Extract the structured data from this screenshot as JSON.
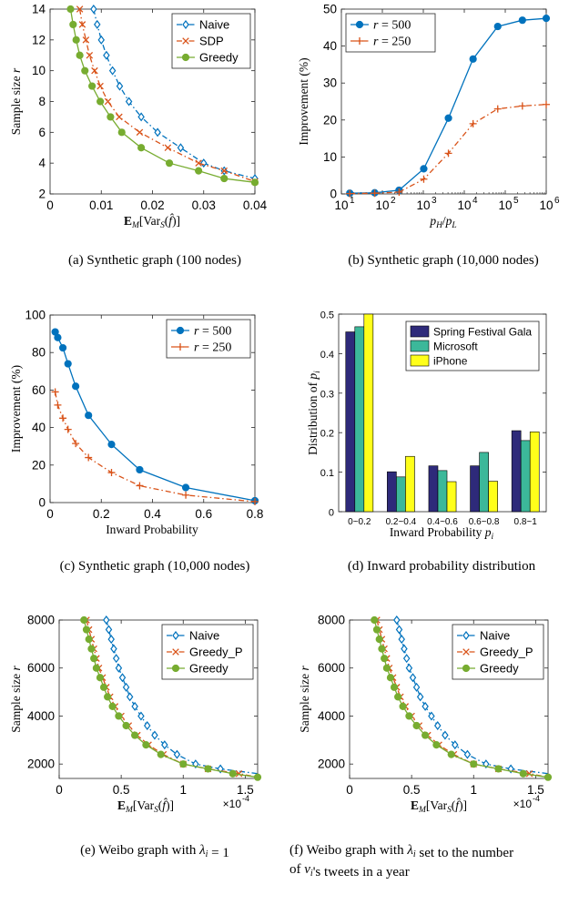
{
  "chart_data": [
    {
      "id": "a",
      "type": "line",
      "caption": "(a) Synthetic graph (100 nodes)",
      "xlabel": "E_M[Var_S(f̂)]",
      "ylabel": "Sample size r",
      "xlim": [
        0,
        0.04
      ],
      "ylim": [
        2,
        14
      ],
      "xticks": [
        0,
        0.01,
        0.02,
        0.03,
        0.04
      ],
      "xtick_labels": [
        "0",
        "0.01",
        "0.02",
        "0.03",
        "0.04"
      ],
      "yticks": [
        2,
        4,
        6,
        8,
        10,
        12,
        14
      ],
      "ytick_labels": [
        "2",
        "4",
        "6",
        "8",
        "10",
        "12",
        "14"
      ],
      "legend_position": "top-right",
      "series": [
        {
          "name": "Naive",
          "color": "#0072BD",
          "marker": "diamond",
          "dash": "dashdot",
          "x": [
            0.0085,
            0.0092,
            0.01,
            0.011,
            0.0122,
            0.0136,
            0.0154,
            0.0178,
            0.021,
            0.0255,
            0.03,
            0.034,
            0.04
          ],
          "y": [
            14,
            13,
            12,
            11,
            10,
            9,
            8,
            7,
            6,
            5,
            4,
            3.5,
            3
          ]
        },
        {
          "name": "SDP",
          "color": "#D95319",
          "marker": "x",
          "dash": "dashdot",
          "x": [
            0.0058,
            0.0063,
            0.007,
            0.0077,
            0.0087,
            0.0098,
            0.0113,
            0.0135,
            0.0175,
            0.023,
            0.029,
            0.034,
            0.04
          ],
          "y": [
            14,
            13,
            12,
            11,
            10,
            9,
            8,
            7,
            6,
            5,
            4,
            3.5,
            2.8
          ]
        },
        {
          "name": "Greedy",
          "color": "#77AC30",
          "marker": "circle",
          "dash": "solid",
          "x": [
            0.004,
            0.0045,
            0.0051,
            0.0058,
            0.0068,
            0.0082,
            0.0098,
            0.0118,
            0.014,
            0.0178,
            0.0233,
            0.029,
            0.034,
            0.04
          ],
          "y": [
            14,
            13,
            12,
            11,
            10,
            9,
            8,
            7,
            6,
            5,
            4,
            3.5,
            3,
            2.75
          ]
        }
      ]
    },
    {
      "id": "b",
      "type": "line",
      "caption": "(b) Synthetic graph (10,000 nodes)",
      "xlabel": "p_H/p_L",
      "ylabel": "Improvement (%)",
      "xscale": "log",
      "xlim": [
        10,
        1000000
      ],
      "ylim": [
        0,
        50
      ],
      "xticks": [
        10,
        100,
        1000,
        10000,
        100000,
        1000000
      ],
      "xtick_labels": [
        "10",
        "10",
        "10",
        "10",
        "10",
        "10"
      ],
      "xtick_exponents": [
        "1",
        "2",
        "3",
        "4",
        "5",
        "6"
      ],
      "yticks": [
        0,
        10,
        20,
        30,
        40,
        50
      ],
      "ytick_labels": [
        "0",
        "10",
        "20",
        "30",
        "40",
        "50"
      ],
      "legend_position": "top-left",
      "series": [
        {
          "name": "r = 500",
          "color": "#0072BD",
          "marker": "circle",
          "dash": "solid",
          "x": [
            16,
            65,
            256,
            1024,
            4096,
            16384,
            65536,
            262144,
            1000000
          ],
          "y": [
            0.2,
            0.3,
            1.0,
            6.8,
            20.5,
            36.5,
            45.3,
            47.0,
            47.5
          ]
        },
        {
          "name": "r = 250",
          "color": "#D95319",
          "marker": "plus",
          "dash": "dashdot",
          "x": [
            16,
            65,
            256,
            1024,
            4096,
            16384,
            65536,
            262144,
            1000000
          ],
          "y": [
            0.1,
            0.2,
            0.5,
            4.0,
            11.0,
            19.0,
            23.0,
            23.8,
            24.2
          ]
        }
      ]
    },
    {
      "id": "c",
      "type": "line",
      "caption": "(c) Synthetic graph (10,000 nodes)",
      "xlabel": "Inward Probability",
      "ylabel": "Improvement (%)",
      "xlim": [
        0,
        0.8
      ],
      "ylim": [
        0,
        100
      ],
      "xticks": [
        0,
        0.2,
        0.4,
        0.6,
        0.8
      ],
      "xtick_labels": [
        "0",
        "0.2",
        "0.4",
        "0.6",
        "0.8"
      ],
      "yticks": [
        0,
        20,
        40,
        60,
        80,
        100
      ],
      "ytick_labels": [
        "0",
        "20",
        "40",
        "60",
        "80",
        "100"
      ],
      "legend_position": "top-right",
      "series": [
        {
          "name": "r = 500",
          "color": "#0072BD",
          "marker": "circle",
          "dash": "solid",
          "x": [
            0.02,
            0.03,
            0.05,
            0.07,
            0.1,
            0.15,
            0.24,
            0.35,
            0.53,
            0.8
          ],
          "y": [
            91,
            88,
            82.5,
            74,
            62,
            46.5,
            31,
            17.5,
            8,
            1
          ]
        },
        {
          "name": "r = 250",
          "color": "#D95319",
          "marker": "plus",
          "dash": "dashdot",
          "x": [
            0.02,
            0.03,
            0.05,
            0.07,
            0.1,
            0.15,
            0.24,
            0.35,
            0.53,
            0.8
          ],
          "y": [
            59,
            52,
            45,
            39,
            31.5,
            24,
            16,
            9,
            4,
            0.5
          ]
        }
      ]
    },
    {
      "id": "d",
      "type": "bar",
      "caption": "(d) Inward probability distribution",
      "xlabel": "Inward Probability p_i",
      "ylabel": "Distribution of p_i",
      "ylim": [
        0,
        0.5
      ],
      "yticks": [
        0,
        0.1,
        0.2,
        0.3,
        0.4,
        0.5
      ],
      "ytick_labels": [
        "0",
        "0.1",
        "0.2",
        "0.3",
        "0.4",
        "0.5"
      ],
      "categories": [
        "0~0.2",
        "0.2~0.4",
        "0.4~0.6",
        "0.6~0.8",
        "0.8~1"
      ],
      "legend_position": "top-right",
      "series": [
        {
          "name": "Spring Festival Gala",
          "color": "#2E2A7A",
          "values": [
            0.455,
            0.101,
            0.116,
            0.116,
            0.205
          ]
        },
        {
          "name": "Microsoft",
          "color": "#3CB89A",
          "values": [
            0.468,
            0.088,
            0.104,
            0.15,
            0.18
          ]
        },
        {
          "name": "iPhone",
          "color": "#FFFF1A",
          "values": [
            0.5,
            0.14,
            0.076,
            0.077,
            0.202
          ]
        }
      ]
    },
    {
      "id": "e",
      "type": "line",
      "caption": "(e) Weibo graph with λ_i = 1",
      "xlabel": "E_M[Var_S(f̂)]",
      "ylabel": "Sample size r",
      "x_multiplier": "×10",
      "x_multiplier_exp": "-4",
      "xlim": [
        0,
        1.6
      ],
      "ylim": [
        1400,
        8000
      ],
      "xticks": [
        0,
        0.5,
        1,
        1.5
      ],
      "xtick_labels": [
        "0",
        "0.5",
        "1",
        "1.5"
      ],
      "yticks": [
        2000,
        4000,
        6000,
        8000
      ],
      "ytick_labels": [
        "2000",
        "4000",
        "6000",
        "8000"
      ],
      "legend_position": "top-right",
      "series": [
        {
          "name": "Naive",
          "color": "#0072BD",
          "marker": "diamond",
          "dash": "dashdot",
          "x": [
            0.38,
            0.4,
            0.42,
            0.44,
            0.46,
            0.48,
            0.51,
            0.54,
            0.57,
            0.61,
            0.66,
            0.71,
            0.77,
            0.85,
            0.95,
            1.1,
            1.3,
            1.6
          ],
          "y": [
            8000,
            7600,
            7200,
            6800,
            6400,
            6000,
            5600,
            5200,
            4800,
            4400,
            4000,
            3600,
            3200,
            2800,
            2400,
            2000,
            1800,
            1600
          ]
        },
        {
          "name": "Greedy_P",
          "color": "#D95319",
          "marker": "x",
          "dash": "dashdot",
          "x": [
            0.22,
            0.24,
            0.26,
            0.28,
            0.3,
            0.32,
            0.35,
            0.38,
            0.41,
            0.45,
            0.5,
            0.56,
            0.63,
            0.72,
            0.84,
            1.0,
            1.2,
            1.45,
            1.6
          ],
          "y": [
            8000,
            7600,
            7200,
            6800,
            6400,
            6000,
            5600,
            5200,
            4800,
            4400,
            4000,
            3600,
            3200,
            2800,
            2400,
            2000,
            1800,
            1600,
            1450
          ]
        },
        {
          "name": "Greedy",
          "color": "#77AC30",
          "marker": "circle",
          "dash": "solid",
          "x": [
            0.2,
            0.22,
            0.24,
            0.26,
            0.28,
            0.3,
            0.33,
            0.36,
            0.39,
            0.43,
            0.48,
            0.54,
            0.61,
            0.7,
            0.82,
            1.0,
            1.2,
            1.4,
            1.6
          ],
          "y": [
            8000,
            7600,
            7200,
            6800,
            6400,
            6000,
            5600,
            5200,
            4800,
            4400,
            4000,
            3600,
            3200,
            2800,
            2400,
            2000,
            1800,
            1600,
            1450
          ]
        }
      ]
    },
    {
      "id": "f",
      "type": "line",
      "caption": "(f) Weibo graph with λ_i set to the number of v_i's tweets in a year",
      "xlabel": "E_M[Var_S(f̂)]",
      "ylabel": "Sample size r",
      "x_multiplier": "×10",
      "x_multiplier_exp": "-4",
      "xlim": [
        0,
        1.6
      ],
      "ylim": [
        1400,
        8000
      ],
      "xticks": [
        0,
        0.5,
        1,
        1.5
      ],
      "xtick_labels": [
        "0",
        "0.5",
        "1",
        "1.5"
      ],
      "yticks": [
        2000,
        4000,
        6000,
        8000
      ],
      "ytick_labels": [
        "2000",
        "4000",
        "6000",
        "8000"
      ],
      "legend_position": "top-right",
      "series": [
        {
          "name": "Naive",
          "color": "#0072BD",
          "marker": "diamond",
          "dash": "dashdot",
          "x": [
            0.38,
            0.4,
            0.42,
            0.44,
            0.46,
            0.48,
            0.51,
            0.54,
            0.57,
            0.61,
            0.66,
            0.71,
            0.77,
            0.85,
            0.95,
            1.1,
            1.3,
            1.6
          ],
          "y": [
            8000,
            7600,
            7200,
            6800,
            6400,
            6000,
            5600,
            5200,
            4800,
            4400,
            4000,
            3600,
            3200,
            2800,
            2400,
            2000,
            1800,
            1600
          ]
        },
        {
          "name": "Greedy_P",
          "color": "#D95319",
          "marker": "x",
          "dash": "dashdot",
          "x": [
            0.22,
            0.24,
            0.26,
            0.28,
            0.3,
            0.32,
            0.35,
            0.38,
            0.41,
            0.45,
            0.5,
            0.56,
            0.63,
            0.72,
            0.84,
            1.0,
            1.2,
            1.45,
            1.6
          ],
          "y": [
            8000,
            7600,
            7200,
            6800,
            6400,
            6000,
            5600,
            5200,
            4800,
            4400,
            4000,
            3600,
            3200,
            2800,
            2400,
            2000,
            1800,
            1600,
            1450
          ]
        },
        {
          "name": "Greedy",
          "color": "#77AC30",
          "marker": "circle",
          "dash": "solid",
          "x": [
            0.2,
            0.22,
            0.24,
            0.26,
            0.28,
            0.3,
            0.33,
            0.36,
            0.39,
            0.43,
            0.48,
            0.54,
            0.61,
            0.7,
            0.82,
            1.0,
            1.2,
            1.4,
            1.6
          ],
          "y": [
            8000,
            7600,
            7200,
            6800,
            6400,
            6000,
            5600,
            5200,
            4800,
            4400,
            4000,
            3600,
            3200,
            2800,
            2400,
            2000,
            1800,
            1600,
            1450
          ]
        }
      ]
    }
  ]
}
